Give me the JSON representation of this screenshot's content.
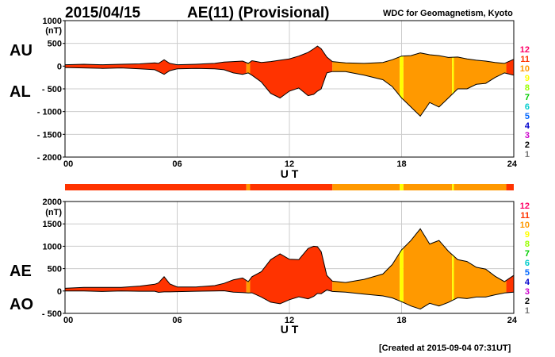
{
  "header": {
    "date": "2015/04/15",
    "title": "AE(11) (Provisional)",
    "source": "WDC for Geomagnetism, Kyoto"
  },
  "footer": {
    "created": "[Created at 2015-09-04 07:31UT]"
  },
  "colors": {
    "background": "#ffffff",
    "grid": "#cccccc",
    "outline": "#000000",
    "activity_scale": [
      "#bbbbbb",
      "#777777",
      "#000000",
      "#cc00cc",
      "#0000cc",
      "#0066ff",
      "#00cccc",
      "#00cc00",
      "#99ff00",
      "#ffff00",
      "#ff9900",
      "#ff3300",
      "#ff0066"
    ]
  },
  "activity_levels": {
    "labels": [
      "12",
      "11",
      "10",
      "9",
      "8",
      "7",
      "6",
      "5",
      "4",
      "3",
      "2",
      "1"
    ],
    "colors": [
      "#ff0066",
      "#ff3300",
      "#ff9900",
      "#ffff00",
      "#99ff00",
      "#00cc00",
      "#00cccc",
      "#0066ff",
      "#0000cc",
      "#cc00cc",
      "#000000",
      "#777777",
      "#bbbbbb"
    ]
  },
  "chart_data": [
    {
      "type": "area",
      "panel": "AU/AL",
      "upper_label": "AU",
      "lower_label": "AL",
      "unit": "(nT)",
      "xlabel": "U T",
      "xlim": [
        0,
        24
      ],
      "xticks": [
        "00",
        "06",
        "12",
        "18",
        "24"
      ],
      "ylim": [
        -2000,
        1000
      ],
      "yticks": [
        "1000",
        "500",
        "0",
        "- 500",
        "- 1000",
        "- 1500",
        "- 2000"
      ],
      "ytick_values": [
        1000,
        500,
        0,
        -500,
        -1000,
        -1500,
        -2000
      ],
      "grid": true,
      "series": [
        {
          "name": "AU",
          "x": [
            0,
            1,
            2,
            3,
            4,
            4.8,
            5,
            5.3,
            5.6,
            6,
            7,
            8,
            8.5,
            9,
            9.5,
            9.8,
            10,
            10.5,
            11,
            11.5,
            12,
            12.5,
            13,
            13.3,
            13.5,
            13.7,
            14,
            14.3,
            15,
            16,
            17,
            17.5,
            18,
            18.5,
            19,
            19.5,
            20,
            20.5,
            21,
            21.5,
            22,
            22.5,
            23,
            23.5,
            24
          ],
          "values": [
            30,
            40,
            30,
            40,
            50,
            70,
            60,
            140,
            60,
            30,
            40,
            60,
            90,
            100,
            110,
            60,
            120,
            80,
            100,
            130,
            160,
            220,
            300,
            380,
            440,
            380,
            200,
            100,
            70,
            60,
            80,
            140,
            220,
            230,
            290,
            250,
            230,
            190,
            200,
            160,
            130,
            110,
            80,
            60,
            150
          ]
        },
        {
          "name": "AL",
          "x": [
            0,
            1,
            2,
            3,
            4,
            4.8,
            5,
            5.3,
            5.6,
            6,
            7,
            8,
            8.5,
            9,
            9.5,
            9.8,
            10,
            10.5,
            11,
            11.5,
            12,
            12.5,
            13,
            13.3,
            13.5,
            13.7,
            14,
            14.3,
            15,
            16,
            17,
            17.5,
            18,
            18.5,
            19,
            19.5,
            20,
            20.5,
            21,
            21.5,
            22,
            22.5,
            23,
            23.5,
            24
          ],
          "values": [
            -30,
            -40,
            -50,
            -40,
            -60,
            -80,
            -120,
            -180,
            -100,
            -60,
            -50,
            -60,
            -80,
            -150,
            -180,
            -150,
            -200,
            -350,
            -600,
            -700,
            -550,
            -480,
            -650,
            -620,
            -550,
            -500,
            -150,
            -120,
            -120,
            -200,
            -300,
            -450,
            -700,
            -900,
            -1100,
            -800,
            -900,
            -700,
            -500,
            -500,
            -400,
            -380,
            -250,
            -150,
            -200
          ]
        }
      ],
      "level_bands": [
        {
          "from": 0,
          "to": 9.7,
          "level": "11"
        },
        {
          "from": 9.7,
          "to": 9.9,
          "level": "10"
        },
        {
          "from": 9.9,
          "to": 14.3,
          "level": "11"
        },
        {
          "from": 14.3,
          "to": 17.9,
          "level": "10"
        },
        {
          "from": 17.9,
          "to": 18.1,
          "level": "9"
        },
        {
          "from": 18.1,
          "to": 20.7,
          "level": "10"
        },
        {
          "from": 20.7,
          "to": 20.8,
          "level": "9"
        },
        {
          "from": 20.8,
          "to": 23.6,
          "level": "10"
        },
        {
          "from": 23.6,
          "to": 24,
          "level": "11"
        }
      ]
    },
    {
      "type": "area",
      "panel": "AE/AO",
      "upper_label": "AE",
      "lower_label": "AO",
      "unit": "(nT)",
      "xlabel": "U T",
      "xlim": [
        0,
        24
      ],
      "xticks": [
        "00",
        "06",
        "12",
        "18",
        "24"
      ],
      "ylim": [
        -500,
        2000
      ],
      "yticks": [
        "2000",
        "1500",
        "1000",
        "500",
        "0",
        "- 500"
      ],
      "ytick_values": [
        2000,
        1500,
        1000,
        500,
        0,
        -500
      ],
      "grid": true,
      "series": [
        {
          "name": "AE",
          "x": [
            0,
            1,
            2,
            3,
            4,
            4.8,
            5,
            5.3,
            5.6,
            6,
            7,
            8,
            8.5,
            9,
            9.5,
            9.8,
            10,
            10.5,
            11,
            11.5,
            12,
            12.5,
            13,
            13.3,
            13.5,
            13.7,
            14,
            14.3,
            15,
            16,
            17,
            17.5,
            18,
            18.5,
            19,
            19.5,
            20,
            20.5,
            21,
            21.5,
            22,
            22.5,
            23,
            23.5,
            24
          ],
          "values": [
            60,
            80,
            80,
            80,
            110,
            150,
            180,
            320,
            160,
            90,
            90,
            120,
            170,
            250,
            290,
            210,
            320,
            430,
            700,
            830,
            710,
            700,
            950,
            1000,
            990,
            880,
            350,
            220,
            190,
            260,
            380,
            590,
            920,
            1130,
            1390,
            1050,
            1130,
            890,
            700,
            660,
            530,
            490,
            330,
            210,
            350
          ]
        },
        {
          "name": "AO",
          "x": [
            0,
            1,
            2,
            3,
            4,
            4.8,
            5,
            5.3,
            5.6,
            6,
            7,
            8,
            8.5,
            9,
            9.5,
            9.8,
            10,
            10.5,
            11,
            11.5,
            12,
            12.5,
            13,
            13.3,
            13.5,
            13.7,
            14,
            14.3,
            15,
            16,
            17,
            17.5,
            18,
            18.5,
            19,
            19.5,
            20,
            20.5,
            21,
            21.5,
            22,
            22.5,
            23,
            23.5,
            24
          ],
          "values": [
            0,
            0,
            -10,
            0,
            -5,
            -5,
            -30,
            -20,
            -20,
            -15,
            -5,
            0,
            5,
            -25,
            -35,
            -45,
            -40,
            -135,
            -250,
            -285,
            -195,
            -130,
            -175,
            -120,
            -55,
            -60,
            25,
            -10,
            -25,
            -70,
            -110,
            -155,
            -240,
            -335,
            -405,
            -275,
            -335,
            -255,
            -150,
            -170,
            -135,
            -135,
            -85,
            -45,
            -25
          ]
        }
      ],
      "level_bands": [
        {
          "from": 0,
          "to": 9.7,
          "level": "11"
        },
        {
          "from": 9.7,
          "to": 9.9,
          "level": "10"
        },
        {
          "from": 9.9,
          "to": 14.3,
          "level": "11"
        },
        {
          "from": 14.3,
          "to": 17.9,
          "level": "10"
        },
        {
          "from": 17.9,
          "to": 18.1,
          "level": "9"
        },
        {
          "from": 18.1,
          "to": 20.7,
          "level": "10"
        },
        {
          "from": 20.7,
          "to": 20.8,
          "level": "9"
        },
        {
          "from": 20.8,
          "to": 23.6,
          "level": "10"
        },
        {
          "from": 23.6,
          "to": 24,
          "level": "11"
        }
      ]
    }
  ]
}
